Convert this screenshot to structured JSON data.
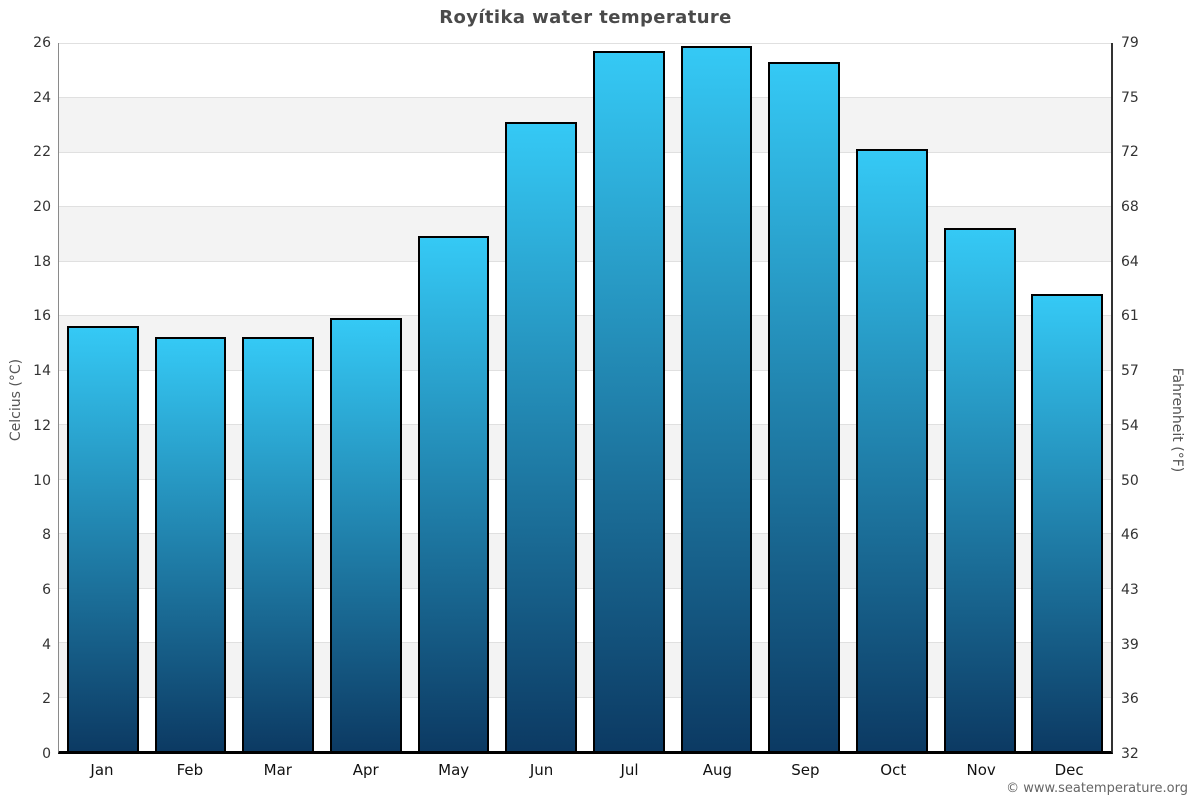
{
  "title": "Royítika water temperature",
  "footer": {
    "credit": "© www.seatemperature.org"
  },
  "chart_data": {
    "type": "bar",
    "title": "Royítika water temperature",
    "categories": [
      "Jan",
      "Feb",
      "Mar",
      "Apr",
      "May",
      "Jun",
      "Jul",
      "Aug",
      "Sep",
      "Oct",
      "Nov",
      "Dec"
    ],
    "values": [
      15.6,
      15.2,
      15.2,
      15.9,
      18.9,
      23.1,
      25.7,
      25.9,
      25.3,
      22.1,
      19.2,
      16.8
    ],
    "unit": "°C",
    "xlabel": "",
    "ylabel_left": "Celcius (°C)",
    "ylabel_right": "Fahrenheit (°F)",
    "ylim": [
      0,
      26
    ],
    "yticks_celsius": [
      26,
      24,
      22,
      20,
      18,
      16,
      14,
      12,
      10,
      8,
      6,
      4,
      2,
      0
    ],
    "yticks_fahrenheit": [
      79,
      75,
      72,
      68,
      64,
      61,
      57,
      54,
      50,
      46,
      43,
      39,
      36,
      32
    ],
    "legend": "none",
    "grid": "alternating-horizontal-bands",
    "colors": {
      "band": "#f3f3f3",
      "gridline": "#e0e0e0",
      "bar_top": "#35c9f5",
      "bar_bottom": "#0c3a63",
      "bar_border": "#000000",
      "title_text": "#4a4a4a",
      "tick_text": "#333333",
      "axis_title_text": "#555555",
      "footer_text": "#666666"
    }
  }
}
